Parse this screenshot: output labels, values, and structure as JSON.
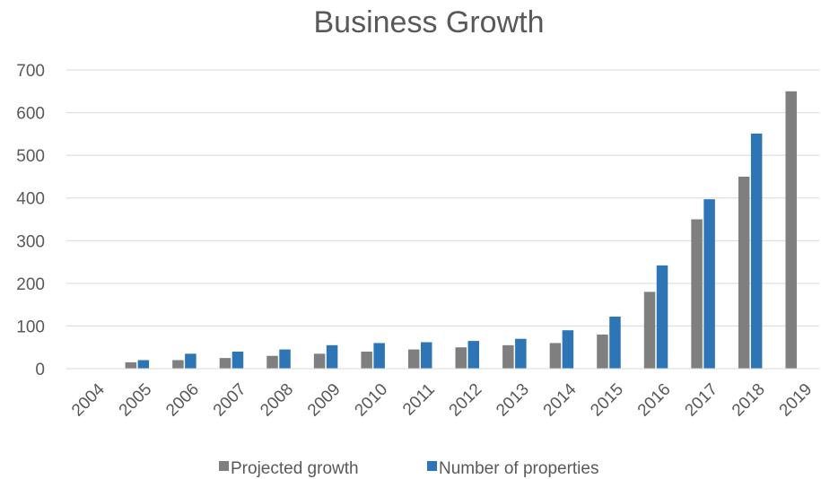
{
  "chart_data": {
    "type": "bar",
    "title": "Business Growth",
    "xlabel": "",
    "ylabel": "",
    "categories": [
      "2004",
      "2005",
      "2006",
      "2007",
      "2008",
      "2009",
      "2010",
      "2011",
      "2012",
      "2013",
      "2014",
      "2015",
      "2016",
      "2017",
      "2018",
      "2019"
    ],
    "series": [
      {
        "name": "Projected growth",
        "color": "#7f7f7f",
        "values": [
          0,
          15,
          20,
          25,
          30,
          35,
          40,
          45,
          50,
          55,
          60,
          80,
          180,
          350,
          450,
          650
        ]
      },
      {
        "name": "Number of properties",
        "color": "#2e75b6",
        "values": [
          0,
          20,
          35,
          40,
          45,
          55,
          60,
          62,
          65,
          70,
          90,
          122,
          242,
          397,
          551,
          null
        ]
      }
    ],
    "ylim": [
      0,
      700
    ],
    "yticks": [
      0,
      100,
      200,
      300,
      400,
      500,
      600,
      700
    ],
    "grid": true,
    "legend_position": "bottom"
  }
}
